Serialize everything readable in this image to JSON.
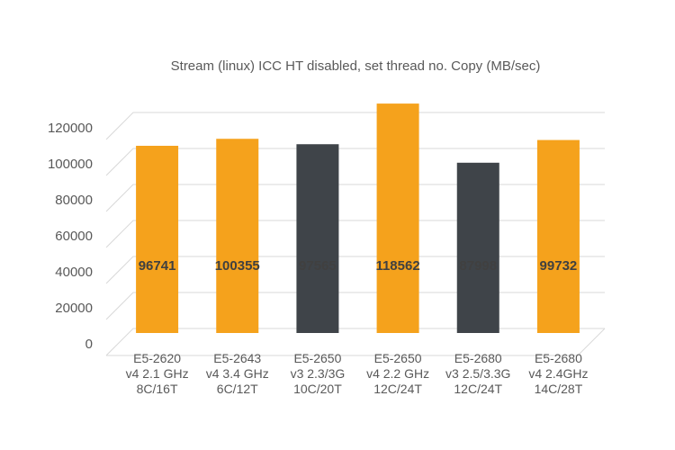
{
  "chart_data": {
    "type": "bar",
    "title": "Stream (linux) ICC HT disabled, set thread no. Copy (MB/sec)",
    "xlabel": "",
    "ylabel": "",
    "categories": [
      [
        "E5-2620",
        "v4 2.1 GHz",
        "8C/16T"
      ],
      [
        "E5-2643",
        "v4 3.4 GHz",
        "6C/12T"
      ],
      [
        "E5-2650",
        "v3 2.3/3G",
        "10C/20T"
      ],
      [
        "E5-2650",
        "v4 2.2 GHz",
        "12C/24T"
      ],
      [
        "E5-2680",
        "v3 2.5/3.3G",
        "12C/24T"
      ],
      [
        "E5-2680",
        "v4 2.4GHz",
        "14C/28T"
      ]
    ],
    "values": [
      96741,
      100355,
      97565,
      118562,
      87998,
      99732
    ],
    "data_labels": [
      "96741",
      "100355",
      "97565",
      "118562",
      "87998",
      "99732"
    ],
    "bar_colors": [
      "#f5a21c",
      "#f5a21c",
      "#3f4449",
      "#f5a21c",
      "#3f4449",
      "#f5a21c"
    ],
    "ylim": [
      0,
      120000
    ],
    "yticks": [
      0,
      20000,
      40000,
      60000,
      80000,
      100000,
      120000
    ],
    "ytick_labels": [
      "0",
      "20000",
      "40000",
      "60000",
      "80000",
      "100000",
      "120000"
    ],
    "grid": true,
    "legend": "none",
    "style": "3d-perspective-floor"
  }
}
